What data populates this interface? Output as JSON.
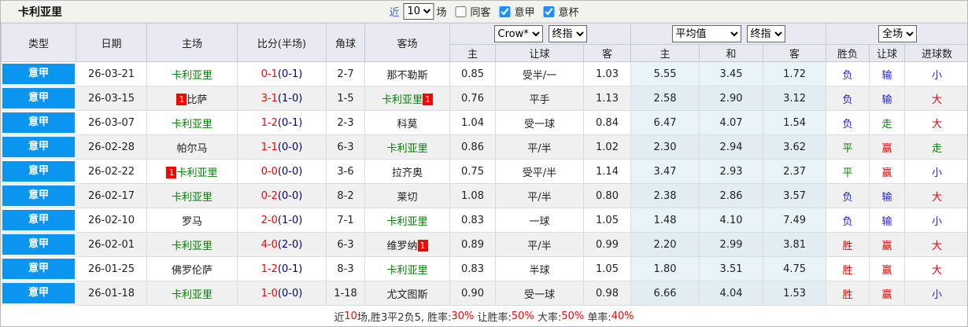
{
  "title": "卡利亚里",
  "filter": {
    "near_label": "近",
    "count_value": "10",
    "unit_label": "场",
    "checkboxes": [
      {
        "label": "同客",
        "checked": false
      },
      {
        "label": "意甲",
        "checked": true
      },
      {
        "label": "意杯",
        "checked": true
      }
    ]
  },
  "header": {
    "type": "类型",
    "date": "日期",
    "home": "主场",
    "score": "比分(半场)",
    "corner": "角球",
    "away": "客场",
    "company_select": "Crow*",
    "company_final_select": "终指",
    "average_select": "平均值",
    "average_final_select": "终指",
    "fulltime_select": "全场",
    "odds_sub": [
      "主",
      "让球",
      "客"
    ],
    "avg_sub": [
      "主",
      "和",
      "客"
    ],
    "result_sub": [
      "胜负",
      "让球",
      "进球数"
    ]
  },
  "colors": {
    "league_blue": "#0a96f0",
    "score_red": "#ff0000",
    "half_score_navy": "#000080",
    "team_green": "#008000",
    "win_red": "#e60000",
    "draw_green": "#008000",
    "lose_blue": "#2222dd"
  },
  "rows": [
    {
      "league": "意甲",
      "date": "26-03-21",
      "home": {
        "name": "卡利亚里",
        "green": true,
        "badge_before": "",
        "badge_after": ""
      },
      "score": {
        "ft": "0-1",
        "ht": "(0-1)"
      },
      "corner": "2-7",
      "away": {
        "name": "那不勒斯",
        "green": false,
        "badge_before": "",
        "badge_after": ""
      },
      "odds": [
        "0.85",
        "受半/一",
        "1.03"
      ],
      "avg": [
        "5.55",
        "3.45",
        "1.72"
      ],
      "results": [
        {
          "text": "负",
          "color": "blue"
        },
        {
          "text": "输",
          "color": "blue"
        },
        {
          "text": "小",
          "color": "blue"
        }
      ]
    },
    {
      "league": "意甲",
      "date": "26-03-15",
      "home": {
        "name": "比萨",
        "green": false,
        "badge_before": "1",
        "badge_after": ""
      },
      "score": {
        "ft": "3-1",
        "ht": "(1-0)"
      },
      "corner": "1-5",
      "away": {
        "name": "卡利亚里",
        "green": true,
        "badge_before": "",
        "badge_after": "1"
      },
      "odds": [
        "0.76",
        "平手",
        "1.13"
      ],
      "avg": [
        "2.58",
        "2.90",
        "3.12"
      ],
      "results": [
        {
          "text": "负",
          "color": "blue"
        },
        {
          "text": "输",
          "color": "blue"
        },
        {
          "text": "大",
          "color": "red"
        }
      ]
    },
    {
      "league": "意甲",
      "date": "26-03-07",
      "home": {
        "name": "卡利亚里",
        "green": true,
        "badge_before": "",
        "badge_after": ""
      },
      "score": {
        "ft": "1-2",
        "ht": "(0-1)"
      },
      "corner": "2-3",
      "away": {
        "name": "科莫",
        "green": false,
        "badge_before": "",
        "badge_after": ""
      },
      "odds": [
        "1.04",
        "受一球",
        "0.84"
      ],
      "avg": [
        "6.47",
        "4.07",
        "1.54"
      ],
      "results": [
        {
          "text": "负",
          "color": "blue"
        },
        {
          "text": "走",
          "color": "green"
        },
        {
          "text": "大",
          "color": "red"
        }
      ]
    },
    {
      "league": "意甲",
      "date": "26-02-28",
      "home": {
        "name": "帕尔马",
        "green": false,
        "badge_before": "",
        "badge_after": ""
      },
      "score": {
        "ft": "1-1",
        "ht": "(0-0)"
      },
      "corner": "6-3",
      "away": {
        "name": "卡利亚里",
        "green": true,
        "badge_before": "",
        "badge_after": ""
      },
      "odds": [
        "0.86",
        "平/半",
        "1.02"
      ],
      "avg": [
        "2.30",
        "2.94",
        "3.62"
      ],
      "results": [
        {
          "text": "平",
          "color": "green"
        },
        {
          "text": "赢",
          "color": "red"
        },
        {
          "text": "走",
          "color": "green"
        }
      ]
    },
    {
      "league": "意甲",
      "date": "26-02-22",
      "home": {
        "name": "卡利亚里",
        "green": true,
        "badge_before": "1",
        "badge_after": ""
      },
      "score": {
        "ft": "0-0",
        "ht": "(0-0)"
      },
      "corner": "3-6",
      "away": {
        "name": "拉齐奥",
        "green": false,
        "badge_before": "",
        "badge_after": ""
      },
      "odds": [
        "0.75",
        "受平/半",
        "1.14"
      ],
      "avg": [
        "3.47",
        "2.93",
        "2.37"
      ],
      "results": [
        {
          "text": "平",
          "color": "green"
        },
        {
          "text": "赢",
          "color": "red"
        },
        {
          "text": "小",
          "color": "blue"
        }
      ]
    },
    {
      "league": "意甲",
      "date": "26-02-17",
      "home": {
        "name": "卡利亚里",
        "green": true,
        "badge_before": "",
        "badge_after": ""
      },
      "score": {
        "ft": "0-2",
        "ht": "(0-0)"
      },
      "corner": "8-2",
      "away": {
        "name": "莱切",
        "green": false,
        "badge_before": "",
        "badge_after": ""
      },
      "odds": [
        "1.08",
        "平/半",
        "0.80"
      ],
      "avg": [
        "2.38",
        "2.86",
        "3.57"
      ],
      "results": [
        {
          "text": "负",
          "color": "blue"
        },
        {
          "text": "输",
          "color": "blue"
        },
        {
          "text": "大",
          "color": "red"
        }
      ]
    },
    {
      "league": "意甲",
      "date": "26-02-10",
      "home": {
        "name": "罗马",
        "green": false,
        "badge_before": "",
        "badge_after": ""
      },
      "score": {
        "ft": "2-0",
        "ht": "(1-0)"
      },
      "corner": "7-1",
      "away": {
        "name": "卡利亚里",
        "green": true,
        "badge_before": "",
        "badge_after": ""
      },
      "odds": [
        "0.83",
        "一球",
        "1.05"
      ],
      "avg": [
        "1.48",
        "4.10",
        "7.49"
      ],
      "results": [
        {
          "text": "负",
          "color": "blue"
        },
        {
          "text": "输",
          "color": "blue"
        },
        {
          "text": "小",
          "color": "blue"
        }
      ]
    },
    {
      "league": "意甲",
      "date": "26-02-01",
      "home": {
        "name": "卡利亚里",
        "green": true,
        "badge_before": "",
        "badge_after": ""
      },
      "score": {
        "ft": "4-0",
        "ht": "(2-0)"
      },
      "corner": "6-3",
      "away": {
        "name": "维罗纳",
        "green": false,
        "badge_before": "",
        "badge_after": "1"
      },
      "odds": [
        "0.89",
        "平/半",
        "0.99"
      ],
      "avg": [
        "2.20",
        "2.99",
        "3.81"
      ],
      "results": [
        {
          "text": "胜",
          "color": "red"
        },
        {
          "text": "赢",
          "color": "red"
        },
        {
          "text": "大",
          "color": "red"
        }
      ]
    },
    {
      "league": "意甲",
      "date": "26-01-25",
      "home": {
        "name": "佛罗伦萨",
        "green": false,
        "badge_before": "",
        "badge_after": ""
      },
      "score": {
        "ft": "1-2",
        "ht": "(0-1)"
      },
      "corner": "8-3",
      "away": {
        "name": "卡利亚里",
        "green": true,
        "badge_before": "",
        "badge_after": ""
      },
      "odds": [
        "0.83",
        "半球",
        "1.05"
      ],
      "avg": [
        "1.80",
        "3.51",
        "4.75"
      ],
      "results": [
        {
          "text": "胜",
          "color": "red"
        },
        {
          "text": "赢",
          "color": "red"
        },
        {
          "text": "大",
          "color": "red"
        }
      ]
    },
    {
      "league": "意甲",
      "date": "26-01-18",
      "home": {
        "name": "卡利亚里",
        "green": true,
        "badge_before": "",
        "badge_after": ""
      },
      "score": {
        "ft": "1-0",
        "ht": "(0-0)"
      },
      "corner": "1-18",
      "away": {
        "name": "尤文图斯",
        "green": false,
        "badge_before": "",
        "badge_after": ""
      },
      "odds": [
        "0.90",
        "受一球",
        "0.98"
      ],
      "avg": [
        "6.66",
        "4.04",
        "1.53"
      ],
      "results": [
        {
          "text": "胜",
          "color": "red"
        },
        {
          "text": "赢",
          "color": "red"
        },
        {
          "text": "小",
          "color": "blue"
        }
      ]
    }
  ],
  "footer_segments": [
    {
      "text": "近",
      "red": false
    },
    {
      "text": "10",
      "red": true
    },
    {
      "text": "场,胜3平2负5, 胜率:",
      "red": false
    },
    {
      "text": "30%",
      "red": true
    },
    {
      "text": " 让胜率:",
      "red": false
    },
    {
      "text": "50%",
      "red": true
    },
    {
      "text": " 大率:",
      "red": false
    },
    {
      "text": "50%",
      "red": true
    },
    {
      "text": " 单率:",
      "red": false
    },
    {
      "text": "40%",
      "red": true
    }
  ]
}
